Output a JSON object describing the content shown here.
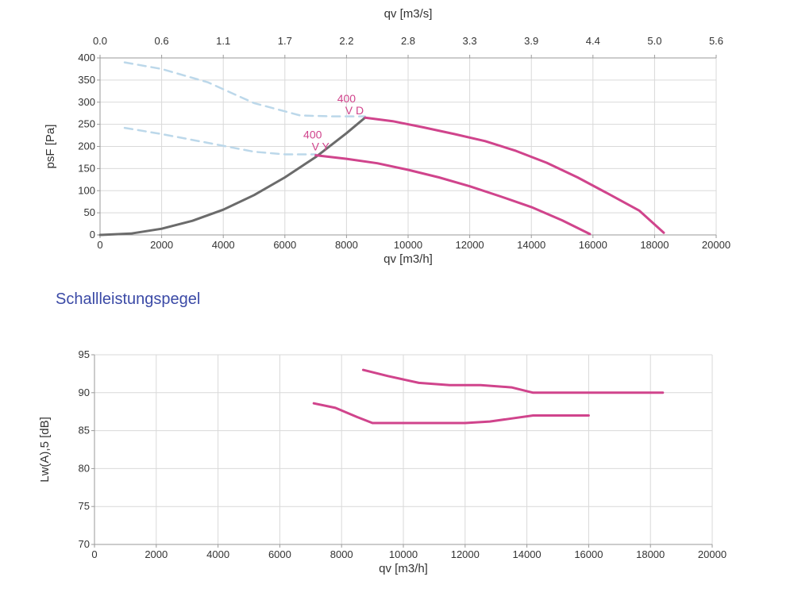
{
  "section_title": "Schallleistungspegel",
  "colors": {
    "curve": "#d0448c",
    "system": "#6b6b6b",
    "ghost": "#bcd8ea",
    "grid": "#d9d9d9",
    "axis": "#9a9a9a",
    "text": "#333333",
    "title": "#3b4aa6"
  },
  "chart_data": [
    {
      "type": "line",
      "xlabel": "qv [m3/h]",
      "ylabel": "psF [Pa]",
      "x2label": "qv [m3/s]",
      "xlim": [
        0,
        20000
      ],
      "ylim": [
        0,
        400
      ],
      "x_ticks": [
        "0",
        "2000",
        "4000",
        "6000",
        "8000",
        "10000",
        "12000",
        "14000",
        "16000",
        "18000",
        "20000"
      ],
      "y_ticks": [
        "0",
        "50",
        "100",
        "150",
        "200",
        "250",
        "300",
        "350",
        "400"
      ],
      "x2_ticks": [
        "0.0",
        "0.6",
        "1.1",
        "1.7",
        "2.2",
        "2.8",
        "3.3",
        "3.9",
        "4.4",
        "5.0",
        "5.6"
      ],
      "grid": true,
      "series": [
        {
          "name": "400 V D",
          "role": "curve",
          "x": [
            8600,
            9500,
            10500,
            11500,
            12500,
            13500,
            14500,
            15500,
            16500,
            17500,
            18300
          ],
          "y": [
            265,
            257,
            243,
            228,
            212,
            190,
            163,
            130,
            93,
            55,
            5
          ]
        },
        {
          "name": "400 V Y",
          "role": "curve",
          "x": [
            7000,
            8000,
            9000,
            10000,
            11000,
            12000,
            13000,
            14000,
            15000,
            15900
          ],
          "y": [
            180,
            172,
            162,
            147,
            130,
            110,
            87,
            63,
            33,
            2
          ]
        },
        {
          "role": "system",
          "x": [
            0,
            1000,
            2000,
            3000,
            4000,
            5000,
            6000,
            7000,
            8000,
            8600
          ],
          "y": [
            0,
            3,
            14,
            32,
            57,
            90,
            130,
            176,
            230,
            265
          ]
        },
        {
          "role": "ghost",
          "x": [
            800,
            2000,
            3500,
            5000,
            6500,
            7500,
            8600
          ],
          "y": [
            390,
            375,
            345,
            298,
            270,
            268,
            268
          ]
        },
        {
          "role": "ghost",
          "x": [
            800,
            2000,
            3500,
            5000,
            6000,
            7000
          ],
          "y": [
            242,
            228,
            208,
            188,
            182,
            182
          ]
        }
      ],
      "annotations": [
        {
          "id": "d",
          "lines": [
            "400",
            "V D"
          ],
          "x": 8000,
          "y": 300
        },
        {
          "id": "y",
          "lines": [
            "400",
            "V Y"
          ],
          "x": 6900,
          "y": 218
        }
      ]
    },
    {
      "type": "line",
      "xlabel": "qv [m3/h]",
      "ylabel": "Lw(A),5 [dB]",
      "xlim": [
        0,
        20000
      ],
      "ylim": [
        70,
        95
      ],
      "x_ticks": [
        "0",
        "2000",
        "4000",
        "6000",
        "8000",
        "10000",
        "12000",
        "14000",
        "16000",
        "18000",
        "20000"
      ],
      "y_ticks": [
        "70",
        "75",
        "80",
        "85",
        "90",
        "95"
      ],
      "grid": true,
      "series": [
        {
          "role": "curve",
          "x": [
            8700,
            9500,
            10500,
            11500,
            12500,
            13500,
            14200,
            15000,
            16000,
            17000,
            18000,
            18400
          ],
          "y": [
            93,
            92.2,
            91.3,
            91,
            91,
            90.7,
            90,
            90,
            90,
            90,
            90,
            90
          ]
        },
        {
          "role": "curve",
          "x": [
            7100,
            7800,
            8500,
            9000,
            10000,
            11000,
            12000,
            12800,
            13500,
            14200,
            15000,
            16000
          ],
          "y": [
            88.6,
            88,
            86.8,
            86,
            86,
            86,
            86,
            86.2,
            86.6,
            87,
            87,
            87
          ]
        }
      ]
    }
  ]
}
